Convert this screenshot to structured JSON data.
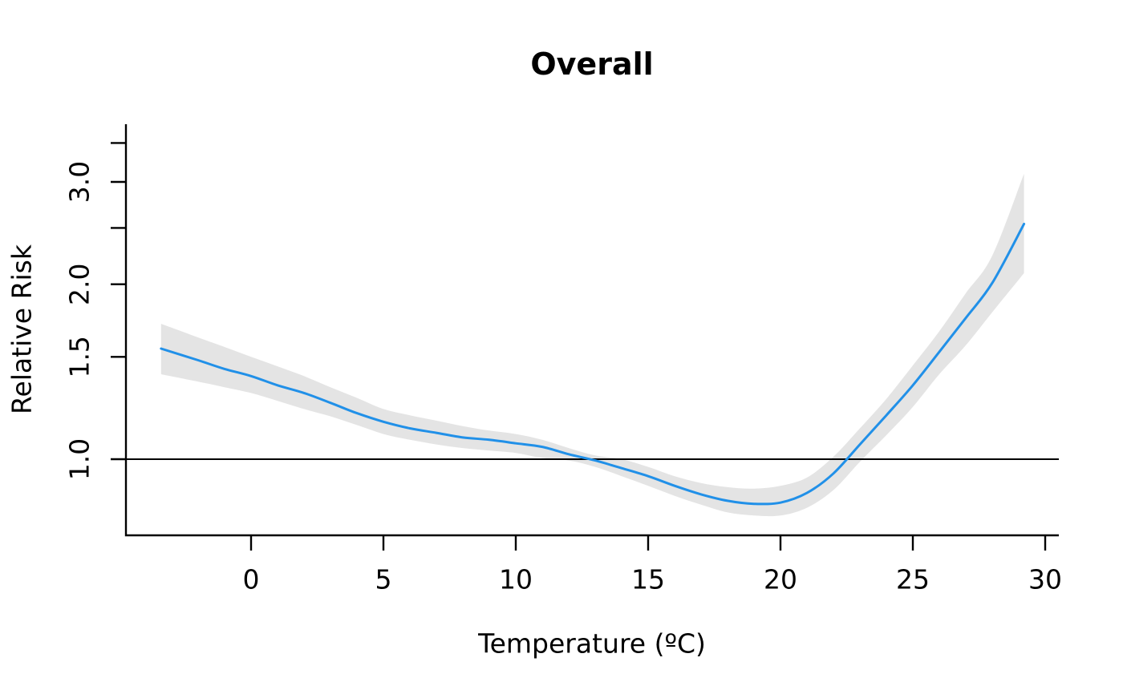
{
  "colors": {
    "curve": "#2190e8",
    "confidence_band": "#e4e4e4",
    "axis": "#000000",
    "reference_line": "#000000",
    "background": "#ffffff"
  },
  "chart_data": {
    "type": "line",
    "title": "Overall",
    "xlabel": "Temperature (ºC)",
    "ylabel": "Relative Risk",
    "y_scale": "log",
    "grid": "off",
    "legend": "none",
    "xlim": [
      -4.7,
      30.5
    ],
    "ylim": [
      0.74,
      3.6
    ],
    "reference_line_y": 1.0,
    "x_ticks": [
      {
        "value": 0,
        "label": "0"
      },
      {
        "value": 5,
        "label": "5"
      },
      {
        "value": 10,
        "label": "10"
      },
      {
        "value": 15,
        "label": "15"
      },
      {
        "value": 20,
        "label": "20"
      },
      {
        "value": 25,
        "label": "25"
      },
      {
        "value": 30,
        "label": "30"
      }
    ],
    "y_ticks": [
      {
        "value": 1.0,
        "label": "1.0"
      },
      {
        "value": 1.5,
        "label": "1.5"
      },
      {
        "value": 2.0,
        "label": "2.0"
      },
      {
        "value": 2.5,
        "label": ""
      },
      {
        "value": 3.0,
        "label": "3.0"
      },
      {
        "value": 3.5,
        "label": ""
      }
    ],
    "x": [
      -3.4,
      -2,
      -1,
      0,
      1,
      2,
      3,
      4,
      5,
      6,
      7,
      8,
      9,
      10,
      11,
      12,
      13,
      14,
      15,
      16,
      17,
      18,
      19,
      20,
      21,
      22,
      23,
      24,
      25,
      26,
      27,
      28,
      29.2
    ],
    "series": [
      {
        "name": "relative-risk",
        "values": [
          1.55,
          1.48,
          1.43,
          1.39,
          1.34,
          1.3,
          1.25,
          1.2,
          1.16,
          1.13,
          1.11,
          1.09,
          1.08,
          1.065,
          1.05,
          1.02,
          0.995,
          0.965,
          0.935,
          0.9,
          0.87,
          0.848,
          0.838,
          0.842,
          0.875,
          0.945,
          1.06,
          1.19,
          1.34,
          1.53,
          1.75,
          2.01,
          2.54
        ]
      },
      {
        "name": "ci-lower",
        "values": [
          1.4,
          1.36,
          1.33,
          1.3,
          1.26,
          1.22,
          1.185,
          1.145,
          1.105,
          1.08,
          1.06,
          1.045,
          1.035,
          1.025,
          1.005,
          0.995,
          0.97,
          0.935,
          0.9,
          0.865,
          0.835,
          0.81,
          0.8,
          0.8,
          0.825,
          0.885,
          0.99,
          1.1,
          1.23,
          1.4,
          1.57,
          1.79,
          2.09
        ]
      },
      {
        "name": "ci-upper",
        "values": [
          1.71,
          1.62,
          1.56,
          1.5,
          1.445,
          1.39,
          1.33,
          1.275,
          1.22,
          1.19,
          1.165,
          1.14,
          1.12,
          1.105,
          1.08,
          1.045,
          1.015,
          1.0,
          0.97,
          0.935,
          0.91,
          0.895,
          0.89,
          0.9,
          0.93,
          1.01,
          1.13,
          1.27,
          1.45,
          1.66,
          1.93,
          2.24,
          3.1
        ]
      }
    ]
  }
}
